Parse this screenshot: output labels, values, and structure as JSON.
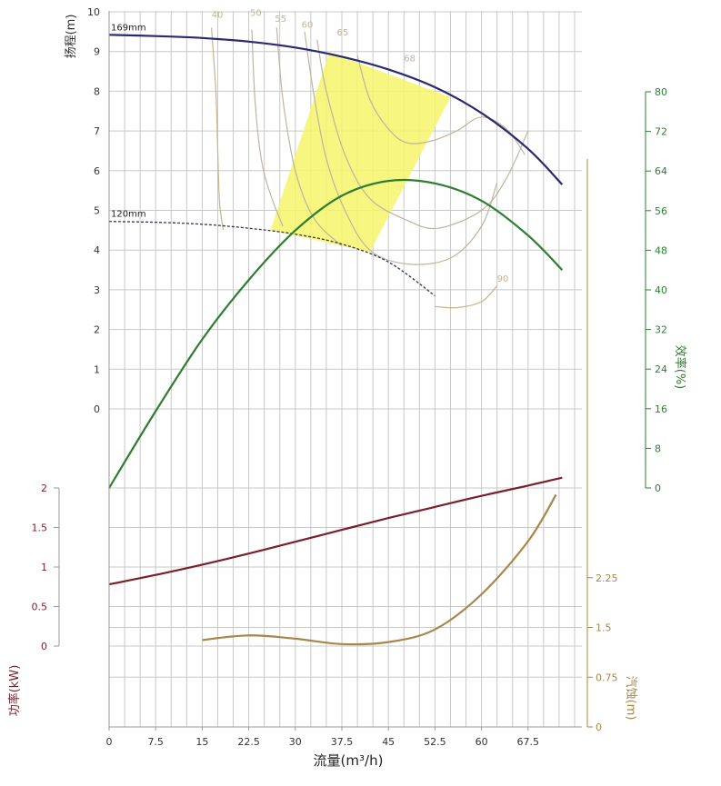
{
  "chart_data": {
    "type": "line",
    "xlabel": "流量(m³/h)",
    "x_ticks": [
      "0",
      "7.5",
      "15",
      "22.5",
      "30",
      "37.5",
      "45",
      "52.5",
      "60",
      "67.5"
    ],
    "xlim": [
      0,
      75
    ],
    "panels": {
      "head": {
        "ylabel": "扬程(m)",
        "ylim": [
          0,
          10
        ],
        "y_ticks": [
          "0",
          "1",
          "2",
          "3",
          "4",
          "5",
          "6",
          "7",
          "8",
          "9",
          "10"
        ]
      },
      "efficiency": {
        "ylabel": "效率(%)",
        "ylim": [
          0,
          80
        ],
        "y_ticks": [
          "0",
          "8",
          "16",
          "24",
          "32",
          "40",
          "48",
          "56",
          "64",
          "72",
          "80"
        ]
      },
      "power": {
        "ylabel": "功率(kW)",
        "ylim": [
          0,
          2
        ],
        "y_ticks": [
          "0",
          "0.5",
          "1",
          "1.5",
          "2"
        ]
      },
      "npsh": {
        "ylabel": "汽蚀(m)",
        "ylim": [
          0,
          3
        ],
        "y_ticks": [
          "0",
          "0.75",
          "1.5",
          "2.25"
        ]
      }
    },
    "series": [
      {
        "name": "169mm",
        "panel": "head",
        "color": "#2a2a6e",
        "style": "solid",
        "x": [
          0,
          7.5,
          15,
          22.5,
          30,
          37.5,
          45,
          52.5,
          60,
          67.5,
          73
        ],
        "y": [
          9.42,
          9.39,
          9.34,
          9.25,
          9.1,
          8.87,
          8.55,
          8.1,
          7.45,
          6.55,
          5.65
        ]
      },
      {
        "name": "120mm",
        "panel": "head",
        "color": "#333355",
        "style": "dashed",
        "x": [
          0,
          7.5,
          15,
          22.5,
          30,
          37.5,
          45,
          52.5
        ],
        "y": [
          4.72,
          4.7,
          4.65,
          4.55,
          4.4,
          4.15,
          3.7,
          2.85
        ]
      },
      {
        "panel": "efficiency",
        "color": "#2e7d32",
        "style": "solid",
        "x": [
          0,
          7.5,
          15,
          22.5,
          30,
          37.5,
          45,
          52.5,
          60,
          67.5,
          73
        ],
        "y": [
          0,
          15.5,
          30,
          42,
          52,
          59,
          62,
          61.5,
          58,
          51,
          44
        ]
      },
      {
        "panel": "power",
        "color": "#7a1f2b",
        "style": "solid",
        "x": [
          0,
          7.5,
          15,
          22.5,
          30,
          37.5,
          45,
          52.5,
          60,
          67.5,
          73
        ],
        "y": [
          0.78,
          0.9,
          1.03,
          1.17,
          1.32,
          1.47,
          1.62,
          1.76,
          1.9,
          2.03,
          2.13
        ]
      },
      {
        "panel": "npsh",
        "color": "#a8864a",
        "style": "solid",
        "x": [
          15,
          22.5,
          30,
          37.5,
          45,
          52.5,
          60,
          67.5,
          72
        ],
        "y": [
          1.31,
          1.38,
          1.33,
          1.25,
          1.28,
          1.47,
          2.0,
          2.8,
          3.5
        ]
      }
    ],
    "iso_efficiency": [
      {
        "label": "40",
        "color": "#c8b48a",
        "label_x": 16.5,
        "label_y": 9.85,
        "x": [
          16.5,
          17.2,
          17.5,
          17.8,
          18.4
        ],
        "y": [
          9.6,
          8.0,
          6.5,
          5.2,
          4.5
        ]
      },
      {
        "label": "50",
        "color": "#bfb4a2",
        "label_x": 22.7,
        "label_y": 9.9,
        "x": [
          23,
          23.5,
          24.5,
          26,
          28
        ],
        "y": [
          9.55,
          7.8,
          6.3,
          5.4,
          4.6
        ]
      },
      {
        "label": "55",
        "color": "#bfb4a2",
        "label_x": 26.7,
        "label_y": 9.75,
        "x": [
          27,
          28,
          30,
          33,
          37.5
        ],
        "y": [
          9.6,
          7.8,
          6.0,
          4.8,
          4.1
        ]
      },
      {
        "label": "60",
        "color": "#bfb4a2",
        "label_x": 31,
        "label_y": 9.6,
        "x": [
          31.5,
          33,
          35,
          38,
          42,
          48,
          55,
          60,
          62.5
        ],
        "y": [
          9.5,
          7.9,
          6.3,
          5.0,
          4.0,
          3.65,
          3.8,
          4.6,
          5.7
        ]
      },
      {
        "label": "65",
        "color": "#bfb4a2",
        "label_x": 36.7,
        "label_y": 9.4,
        "x": [
          33.5,
          35,
          38,
          42,
          48,
          53,
          60,
          64,
          67.5
        ],
        "y": [
          9.3,
          8.0,
          6.4,
          5.3,
          4.75,
          4.55,
          5.0,
          5.8,
          7.0
        ]
      },
      {
        "label": "68",
        "color": "#bfb4a2",
        "label_x": 47.5,
        "label_y": 8.75,
        "x": [
          40,
          42,
          45,
          48,
          52,
          56,
          60,
          64,
          67
        ],
        "y": [
          8.9,
          7.8,
          7.05,
          6.7,
          6.75,
          7.0,
          7.35,
          7.05,
          6.4
        ]
      },
      {
        "label": "90",
        "color": "#c8b48a",
        "label_x": 62.5,
        "label_y": 3.2,
        "x": [
          52.5,
          56,
          60,
          62.5
        ],
        "y": [
          2.58,
          2.55,
          2.7,
          3.1
        ]
      }
    ],
    "preferred_region": {
      "color": "#f5f56a",
      "x": [
        35.5,
        55,
        42,
        26
      ],
      "y": [
        8.98,
        7.85,
        3.95,
        4.5
      ]
    },
    "grid": true
  }
}
